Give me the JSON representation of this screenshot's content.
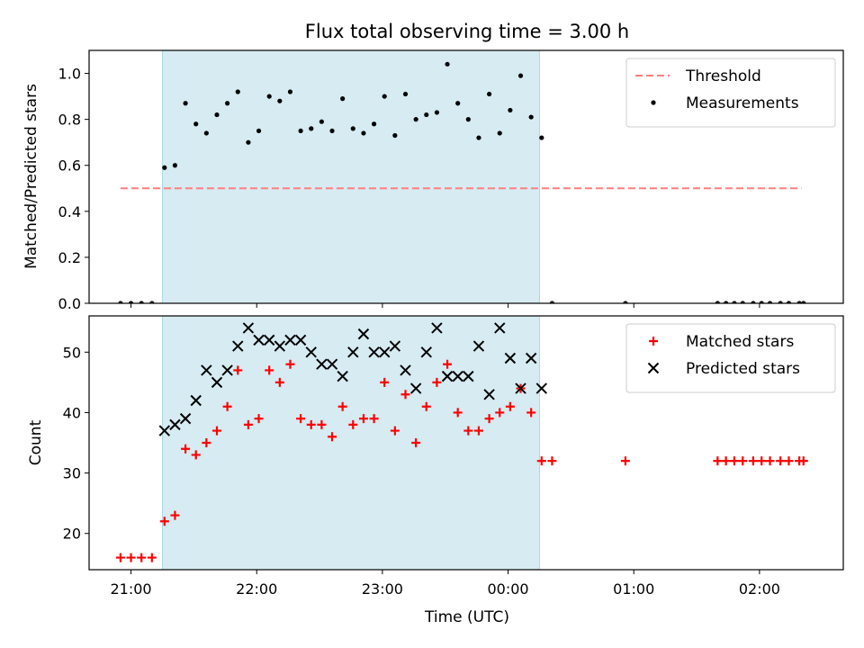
{
  "title": "Flux total observing time = 3.00 h",
  "xlabel": "Time (UTC)",
  "x_ticks": [
    "21:00",
    "22:00",
    "23:00",
    "00:00",
    "01:00",
    "02:00"
  ],
  "colors": {
    "threshold": "#ff7f7f",
    "shade": "#add8e6",
    "matched": "#ff0000",
    "predicted": "#000000",
    "measurements": "#000000"
  },
  "chart_data": [
    {
      "type": "scatter",
      "panel": "top",
      "ylabel": "Matched/Predicted stars",
      "ylim": [
        0,
        1.1
      ],
      "xlim": [
        "20:40",
        "02:40"
      ],
      "y_ticks": [
        "0.0",
        "0.2",
        "0.4",
        "0.6",
        "0.8",
        "1.0"
      ],
      "shaded_region": [
        "21:15",
        "00:15"
      ],
      "grid": false,
      "legend": "top-right",
      "threshold": {
        "name": "Threshold",
        "y": 0.5,
        "x_range": [
          "20:55",
          "02:20"
        ],
        "style": "dashed"
      },
      "series": [
        {
          "name": "Measurements",
          "points": [
            [
              "20:55",
              0
            ],
            [
              "21:00",
              0
            ],
            [
              "21:05",
              0
            ],
            [
              "21:10",
              0
            ],
            [
              "21:16",
              0.59
            ],
            [
              "21:21",
              0.6
            ],
            [
              "21:26",
              0.87
            ],
            [
              "21:31",
              0.78
            ],
            [
              "21:36",
              0.74
            ],
            [
              "21:41",
              0.82
            ],
            [
              "21:46",
              0.87
            ],
            [
              "21:51",
              0.92
            ],
            [
              "21:56",
              0.7
            ],
            [
              "22:01",
              0.75
            ],
            [
              "22:06",
              0.9
            ],
            [
              "22:11",
              0.88
            ],
            [
              "22:16",
              0.92
            ],
            [
              "22:21",
              0.75
            ],
            [
              "22:26",
              0.76
            ],
            [
              "22:31",
              0.79
            ],
            [
              "22:36",
              0.75
            ],
            [
              "22:41",
              0.89
            ],
            [
              "22:46",
              0.76
            ],
            [
              "22:51",
              0.74
            ],
            [
              "22:56",
              0.78
            ],
            [
              "23:01",
              0.9
            ],
            [
              "23:06",
              0.73
            ],
            [
              "23:11",
              0.91
            ],
            [
              "23:16",
              0.8
            ],
            [
              "23:21",
              0.82
            ],
            [
              "23:26",
              0.83
            ],
            [
              "23:31",
              1.04
            ],
            [
              "23:36",
              0.87
            ],
            [
              "23:41",
              0.8
            ],
            [
              "23:46",
              0.72
            ],
            [
              "23:51",
              0.91
            ],
            [
              "23:56",
              0.74
            ],
            [
              "00:01",
              0.84
            ],
            [
              "00:06",
              0.99
            ],
            [
              "00:11",
              0.81
            ],
            [
              "00:16",
              0.72
            ],
            [
              "00:21",
              0
            ],
            [
              "00:56",
              0
            ],
            [
              "01:40",
              0
            ],
            [
              "01:44",
              0
            ],
            [
              "01:48",
              0
            ],
            [
              "01:52",
              0
            ],
            [
              "01:57",
              0
            ],
            [
              "02:01",
              0
            ],
            [
              "02:05",
              0
            ],
            [
              "02:10",
              0
            ],
            [
              "02:14",
              0
            ],
            [
              "02:19",
              0
            ],
            [
              "02:21",
              0
            ]
          ]
        }
      ]
    },
    {
      "type": "scatter",
      "panel": "bottom",
      "ylabel": "Count",
      "ylim": [
        14,
        56
      ],
      "xlim": [
        "20:40",
        "02:40"
      ],
      "y_ticks": [
        "20",
        "30",
        "40",
        "50"
      ],
      "shaded_region": [
        "21:15",
        "00:15"
      ],
      "grid": false,
      "legend": "top-right",
      "series": [
        {
          "name": "Matched stars",
          "marker": "plus",
          "points": [
            [
              "20:55",
              16
            ],
            [
              "21:00",
              16
            ],
            [
              "21:05",
              16
            ],
            [
              "21:10",
              16
            ],
            [
              "21:16",
              22
            ],
            [
              "21:21",
              23
            ],
            [
              "21:26",
              34
            ],
            [
              "21:31",
              33
            ],
            [
              "21:36",
              35
            ],
            [
              "21:41",
              37
            ],
            [
              "21:46",
              41
            ],
            [
              "21:51",
              47
            ],
            [
              "21:56",
              38
            ],
            [
              "22:01",
              39
            ],
            [
              "22:06",
              47
            ],
            [
              "22:11",
              45
            ],
            [
              "22:16",
              48
            ],
            [
              "22:21",
              39
            ],
            [
              "22:26",
              38
            ],
            [
              "22:31",
              38
            ],
            [
              "22:36",
              36
            ],
            [
              "22:41",
              41
            ],
            [
              "22:46",
              38
            ],
            [
              "22:51",
              39
            ],
            [
              "22:56",
              39
            ],
            [
              "23:01",
              45
            ],
            [
              "23:06",
              37
            ],
            [
              "23:11",
              43
            ],
            [
              "23:16",
              35
            ],
            [
              "23:21",
              41
            ],
            [
              "23:26",
              45
            ],
            [
              "23:31",
              48
            ],
            [
              "23:36",
              40
            ],
            [
              "23:41",
              37
            ],
            [
              "23:46",
              37
            ],
            [
              "23:51",
              39
            ],
            [
              "23:56",
              40
            ],
            [
              "00:01",
              41
            ],
            [
              "00:06",
              44
            ],
            [
              "00:11",
              40
            ],
            [
              "00:16",
              32
            ],
            [
              "00:21",
              32
            ],
            [
              "00:56",
              32
            ],
            [
              "01:40",
              32
            ],
            [
              "01:44",
              32
            ],
            [
              "01:48",
              32
            ],
            [
              "01:52",
              32
            ],
            [
              "01:57",
              32
            ],
            [
              "02:01",
              32
            ],
            [
              "02:05",
              32
            ],
            [
              "02:10",
              32
            ],
            [
              "02:14",
              32
            ],
            [
              "02:19",
              32
            ],
            [
              "02:21",
              32
            ]
          ]
        },
        {
          "name": "Predicted stars",
          "marker": "x",
          "points": [
            [
              "21:16",
              37
            ],
            [
              "21:21",
              38
            ],
            [
              "21:26",
              39
            ],
            [
              "21:31",
              42
            ],
            [
              "21:36",
              47
            ],
            [
              "21:41",
              45
            ],
            [
              "21:46",
              47
            ],
            [
              "21:51",
              51
            ],
            [
              "21:56",
              54
            ],
            [
              "22:01",
              52
            ],
            [
              "22:06",
              52
            ],
            [
              "22:11",
              51
            ],
            [
              "22:16",
              52
            ],
            [
              "22:21",
              52
            ],
            [
              "22:26",
              50
            ],
            [
              "22:31",
              48
            ],
            [
              "22:36",
              48
            ],
            [
              "22:41",
              46
            ],
            [
              "22:46",
              50
            ],
            [
              "22:51",
              53
            ],
            [
              "22:56",
              50
            ],
            [
              "23:01",
              50
            ],
            [
              "23:06",
              51
            ],
            [
              "23:11",
              47
            ],
            [
              "23:16",
              44
            ],
            [
              "23:21",
              50
            ],
            [
              "23:26",
              54
            ],
            [
              "23:31",
              46
            ],
            [
              "23:36",
              46
            ],
            [
              "23:41",
              46
            ],
            [
              "23:46",
              51
            ],
            [
              "23:51",
              43
            ],
            [
              "23:56",
              54
            ],
            [
              "00:01",
              49
            ],
            [
              "00:06",
              44
            ],
            [
              "00:11",
              49
            ],
            [
              "00:16",
              44
            ]
          ]
        }
      ]
    }
  ]
}
